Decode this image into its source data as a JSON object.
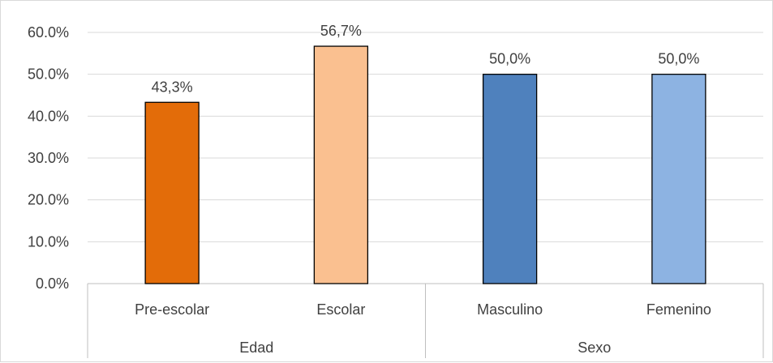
{
  "chart_data": {
    "type": "bar",
    "title": "",
    "xlabel": "",
    "ylabel": "",
    "ylim": [
      0,
      60
    ],
    "yticks": [
      "0.0%",
      "10.0%",
      "20.0%",
      "30.0%",
      "40.0%",
      "50.0%",
      "60.0%"
    ],
    "grid": true,
    "legend": "none",
    "groups": [
      {
        "label": "Edad",
        "categories": [
          "Pre-escolar",
          "Escolar"
        ]
      },
      {
        "label": "Sexo",
        "categories": [
          "Masculino",
          "Femenino"
        ]
      }
    ],
    "categories": [
      "Pre-escolar",
      "Escolar",
      "Masculino",
      "Femenino"
    ],
    "values": [
      43.3,
      56.7,
      50.0,
      50.0
    ],
    "data_labels": [
      "43,3%",
      "56,7%",
      "50,0%",
      "50,0%"
    ],
    "colors": [
      "#e36c09",
      "#fac090",
      "#4f81bd",
      "#8db3e2"
    ],
    "bar_outline_color": "#000000",
    "gridline_color": "#d9d9d9"
  }
}
